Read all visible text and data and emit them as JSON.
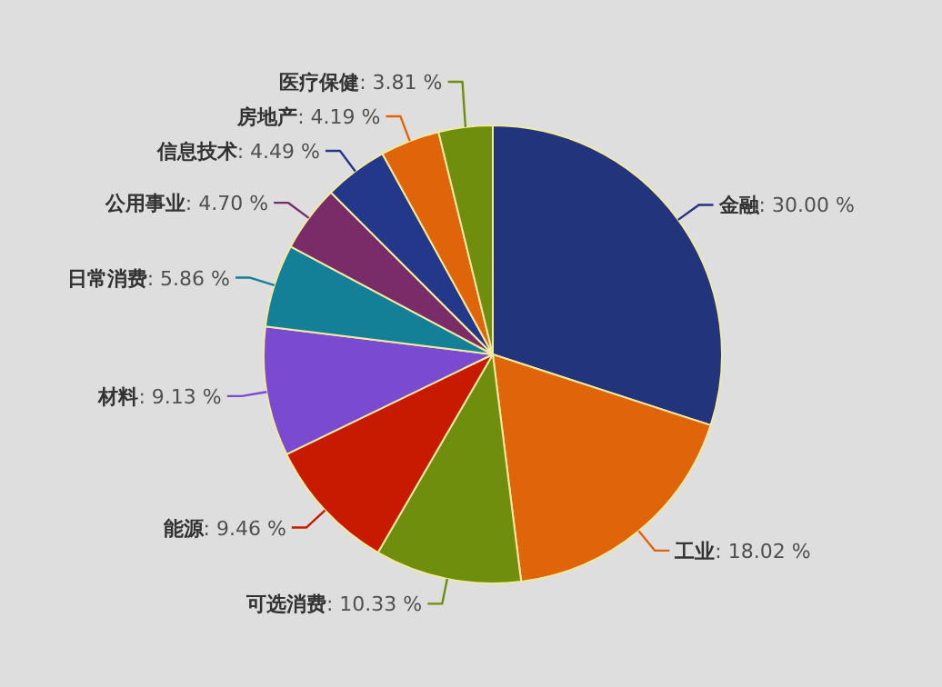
{
  "chart_data": {
    "type": "pie",
    "categories": [
      "金融",
      "工业",
      "可选消费",
      "能源",
      "材料",
      "日常消费",
      "公用事业",
      "信息技术",
      "房地产",
      "医疗保健"
    ],
    "values": [
      30.0,
      18.02,
      10.33,
      9.46,
      9.13,
      5.86,
      4.7,
      4.49,
      4.19,
      3.81
    ],
    "value_labels": [
      ": 30.00 %",
      ": 18.02 %",
      ": 10.33 %",
      ": 9.46 %",
      ": 9.13 %",
      ": 5.86 %",
      ": 4.70 %",
      ": 4.49 %",
      ": 4.19 %",
      ": 3.81 %"
    ],
    "colors": [
      "#22347c",
      "#e0650a",
      "#6f8e0e",
      "#c81a00",
      "#7a4bd0",
      "#138098",
      "#7a2c68",
      "#23388a",
      "#e0650a",
      "#6f8e0e"
    ],
    "legend": false
  }
}
